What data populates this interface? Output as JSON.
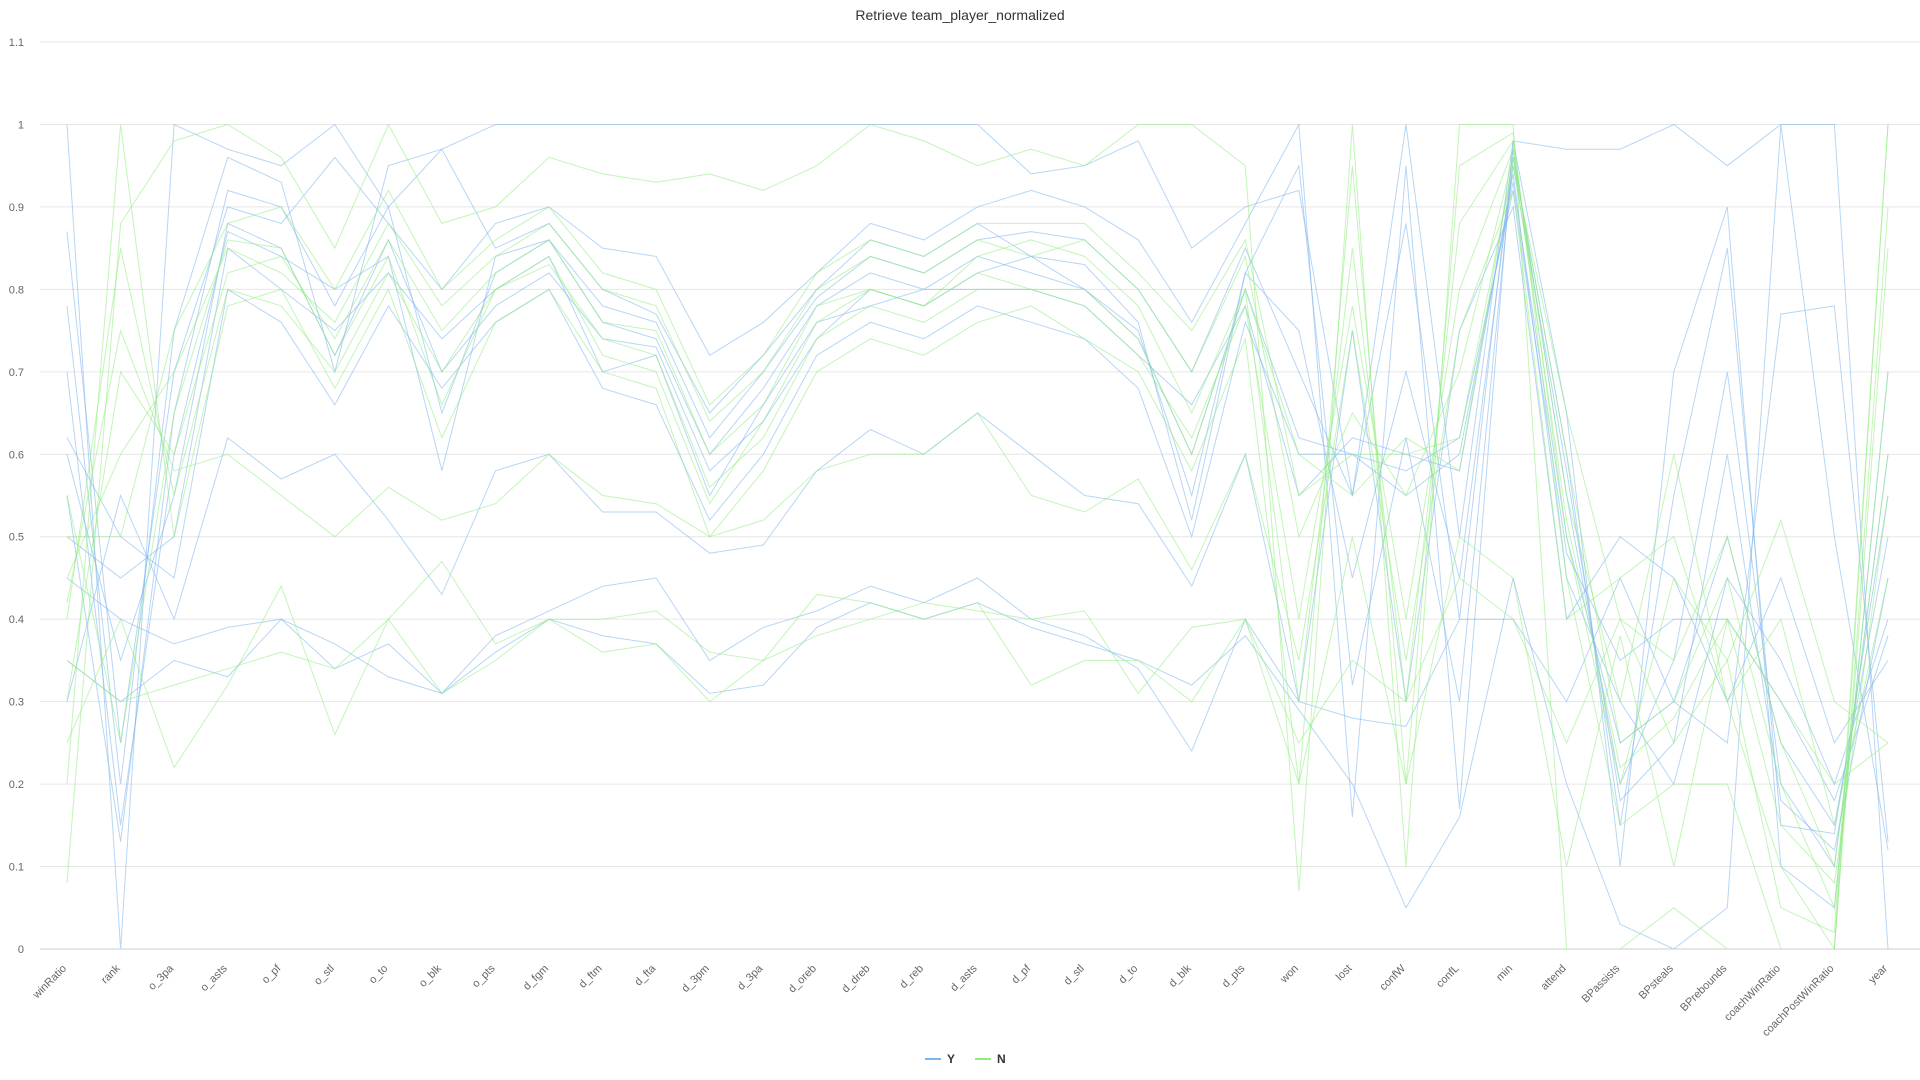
{
  "chart_data": {
    "type": "line",
    "title": "Retrieve team_player_normalized",
    "xlabel": "",
    "ylabel": "",
    "ylim": [
      0,
      1.1
    ],
    "yticks": [
      "0",
      "0.1",
      "0.2",
      "0.3",
      "0.4",
      "0.5",
      "0.6",
      "0.7",
      "0.8",
      "0.9",
      "1",
      "1.1"
    ],
    "grid": true,
    "legend_position": "bottom",
    "categories": [
      "winRatio",
      "rank",
      "o_3pa",
      "o_asts",
      "o_pf",
      "o_stl",
      "o_to",
      "o_blk",
      "o_pts",
      "d_fgm",
      "d_ftm",
      "d_fta",
      "d_3pm",
      "d_3pa",
      "d_oreb",
      "d_dreb",
      "d_reb",
      "d_asts",
      "d_pf",
      "d_stl",
      "d_to",
      "d_blk",
      "d_pts",
      "won",
      "lost",
      "confW",
      "confL",
      "min",
      "attend",
      "BPassists",
      "BPsteals",
      "BPrebounds",
      "coachWinRatio",
      "coachPostWinRatio",
      "year"
    ],
    "legend": [
      {
        "name": "Y",
        "color": "#7cb5ec"
      },
      {
        "name": "N",
        "color": "#90ed7d"
      }
    ],
    "series": [
      {
        "name": "Y",
        "color": "#7cb5ec",
        "values": [
          0.55,
          0.13,
          0.65,
          0.92,
          0.9,
          0.78,
          0.9,
          0.65,
          0.82,
          0.86,
          0.78,
          0.76,
          0.62,
          0.7,
          0.79,
          0.84,
          0.82,
          0.86,
          0.87,
          0.86,
          0.8,
          0.7,
          0.85,
          0.7,
          0.55,
          0.88,
          0.4,
          0.97,
          0.55,
          0.2,
          0.35,
          0.7,
          0.2,
          0.1,
          0.6
        ]
      },
      {
        "name": "Y",
        "color": "#7cb5ec",
        "values": [
          0.78,
          0.2,
          0.75,
          0.96,
          0.93,
          0.7,
          0.95,
          0.97,
          0.85,
          0.88,
          0.8,
          0.77,
          0.65,
          0.72,
          0.8,
          0.86,
          0.84,
          0.88,
          0.84,
          0.83,
          0.76,
          0.52,
          0.82,
          0.95,
          0.32,
          0.62,
          0.3,
          0.96,
          0.6,
          0.15,
          0.55,
          0.85,
          0.15,
          0.14,
          0.55
        ]
      },
      {
        "name": "Y",
        "color": "#7cb5ec",
        "values": [
          0.6,
          0.35,
          0.55,
          0.88,
          0.85,
          0.72,
          0.86,
          0.7,
          0.78,
          0.82,
          0.74,
          0.73,
          0.58,
          0.64,
          0.74,
          0.8,
          0.78,
          0.82,
          0.84,
          0.8,
          0.74,
          0.6,
          0.8,
          0.62,
          0.6,
          0.55,
          0.6,
          0.93,
          0.5,
          0.25,
          0.3,
          0.5,
          0.25,
          0.15,
          0.5
        ]
      },
      {
        "name": "Y",
        "color": "#7cb5ec",
        "values": [
          0.5,
          0.45,
          0.5,
          0.85,
          0.8,
          0.75,
          0.82,
          0.74,
          0.8,
          0.84,
          0.7,
          0.72,
          0.55,
          0.66,
          0.76,
          0.78,
          0.8,
          0.8,
          0.8,
          0.78,
          0.72,
          0.66,
          0.78,
          0.55,
          0.62,
          0.6,
          0.58,
          0.94,
          0.45,
          0.3,
          0.2,
          0.45,
          0.35,
          0.2,
          0.4
        ]
      },
      {
        "name": "Y",
        "color": "#7cb5ec",
        "values": [
          0.87,
          0.25,
          0.7,
          0.9,
          0.88,
          0.96,
          0.88,
          0.8,
          0.88,
          0.9,
          0.85,
          0.84,
          0.72,
          0.76,
          0.82,
          0.88,
          0.86,
          0.9,
          0.92,
          0.9,
          0.86,
          0.76,
          0.88,
          1.0,
          0.16,
          0.95,
          0.17,
          0.98,
          0.65,
          0.1,
          0.7,
          0.9,
          0.1,
          0.05,
          0.7
        ]
      },
      {
        "name": "Y",
        "color": "#7cb5ec",
        "values": [
          0.3,
          0.55,
          0.4,
          0.62,
          0.57,
          0.6,
          0.52,
          0.43,
          0.58,
          0.6,
          0.53,
          0.53,
          0.48,
          0.49,
          0.58,
          0.63,
          0.6,
          0.65,
          0.6,
          0.55,
          0.54,
          0.44,
          0.6,
          0.3,
          0.75,
          0.3,
          0.75,
          0.9,
          0.4,
          0.5,
          0.45,
          0.3,
          0.45,
          0.25,
          0.35
        ]
      },
      {
        "name": "Y",
        "color": "#7cb5ec",
        "values": [
          0.45,
          0.4,
          0.37,
          0.39,
          0.4,
          0.37,
          0.33,
          0.31,
          0.38,
          0.41,
          0.44,
          0.45,
          0.35,
          0.39,
          0.41,
          0.44,
          0.42,
          0.45,
          0.4,
          0.38,
          0.34,
          0.24,
          0.4,
          0.3,
          0.28,
          0.27,
          0.4,
          0.4,
          0.3,
          0.45,
          0.3,
          0.25,
          0.77,
          0.78,
          0.13
        ]
      },
      {
        "name": "Y",
        "color": "#7cb5ec",
        "values": [
          0.35,
          0.3,
          0.35,
          0.33,
          0.4,
          0.34,
          0.37,
          0.31,
          0.36,
          0.4,
          0.38,
          0.37,
          0.31,
          0.32,
          0.39,
          0.42,
          0.4,
          0.42,
          0.39,
          0.37,
          0.35,
          0.32,
          0.38,
          0.29,
          0.2,
          0.05,
          0.16,
          0.45,
          0.2,
          0.03,
          0.0,
          0.05,
          1.0,
          0.5,
          0.12
        ]
      },
      {
        "name": "Y",
        "color": "#7cb5ec",
        "values": [
          1.0,
          0.0,
          1.0,
          0.97,
          0.95,
          1.0,
          0.9,
          0.97,
          1.0,
          1.0,
          1.0,
          1.0,
          1.0,
          1.0,
          1.0,
          1.0,
          1.0,
          1.0,
          0.94,
          0.95,
          0.98,
          0.85,
          0.9,
          0.92,
          0.55,
          1.0,
          0.5,
          0.98,
          0.97,
          0.97,
          1.0,
          0.95,
          1.0,
          1.0,
          0.0
        ]
      },
      {
        "name": "Y",
        "color": "#7cb5ec",
        "values": [
          0.7,
          0.15,
          0.6,
          0.87,
          0.84,
          0.8,
          0.84,
          0.58,
          0.84,
          0.86,
          0.76,
          0.74,
          0.6,
          0.68,
          0.78,
          0.82,
          0.8,
          0.84,
          0.82,
          0.8,
          0.75,
          0.55,
          0.82,
          0.75,
          0.45,
          0.7,
          0.45,
          0.95,
          0.58,
          0.18,
          0.25,
          0.6,
          0.18,
          0.12,
          0.45
        ]
      },
      {
        "name": "Y",
        "color": "#7cb5ec",
        "values": [
          0.62,
          0.5,
          0.45,
          0.8,
          0.76,
          0.66,
          0.78,
          0.68,
          0.76,
          0.8,
          0.68,
          0.66,
          0.52,
          0.6,
          0.72,
          0.76,
          0.74,
          0.78,
          0.76,
          0.74,
          0.68,
          0.5,
          0.76,
          0.6,
          0.6,
          0.58,
          0.62,
          0.92,
          0.48,
          0.35,
          0.4,
          0.4,
          0.3,
          0.18,
          0.38
        ]
      },
      {
        "name": "N",
        "color": "#90ed7d",
        "values": [
          0.4,
          0.85,
          0.55,
          0.8,
          0.78,
          0.7,
          0.82,
          0.7,
          0.8,
          0.83,
          0.74,
          0.72,
          0.56,
          0.62,
          0.74,
          0.78,
          0.76,
          0.8,
          0.8,
          0.78,
          0.72,
          0.62,
          0.78,
          0.4,
          0.78,
          0.4,
          0.8,
          0.97,
          0.55,
          0.3,
          0.6,
          0.3,
          0.1,
          0.0,
          0.9
        ]
      },
      {
        "name": "N",
        "color": "#90ed7d",
        "values": [
          0.3,
          0.7,
          0.6,
          0.82,
          0.84,
          0.74,
          0.86,
          0.75,
          0.82,
          0.86,
          0.76,
          0.75,
          0.6,
          0.66,
          0.78,
          0.8,
          0.78,
          0.84,
          0.86,
          0.84,
          0.78,
          0.65,
          0.8,
          0.3,
          0.85,
          0.3,
          0.88,
          0.98,
          0.5,
          0.2,
          0.45,
          0.35,
          0.05,
          0.02,
          1.0
        ]
      },
      {
        "name": "N",
        "color": "#90ed7d",
        "values": [
          0.45,
          0.6,
          0.7,
          0.85,
          0.82,
          0.76,
          0.88,
          0.78,
          0.84,
          0.88,
          0.8,
          0.78,
          0.64,
          0.7,
          0.8,
          0.84,
          0.82,
          0.86,
          0.84,
          0.86,
          0.8,
          0.7,
          0.84,
          0.5,
          0.65,
          0.55,
          0.7,
          0.96,
          0.6,
          0.25,
          0.3,
          0.45,
          0.2,
          0.05,
          0.7
        ]
      },
      {
        "name": "N",
        "color": "#90ed7d",
        "values": [
          0.2,
          1.0,
          0.5,
          0.78,
          0.8,
          0.68,
          0.8,
          0.62,
          0.76,
          0.8,
          0.7,
          0.68,
          0.5,
          0.58,
          0.7,
          0.74,
          0.72,
          0.76,
          0.78,
          0.74,
          0.7,
          0.58,
          0.74,
          0.2,
          0.95,
          0.2,
          0.95,
          0.99,
          0.45,
          0.15,
          0.2,
          0.2,
          0.0,
          0.0,
          0.85
        ]
      },
      {
        "name": "N",
        "color": "#90ed7d",
        "values": [
          0.5,
          0.5,
          0.75,
          0.88,
          0.9,
          0.8,
          0.92,
          0.8,
          0.86,
          0.9,
          0.82,
          0.8,
          0.66,
          0.72,
          0.82,
          0.86,
          0.84,
          0.88,
          0.88,
          0.88,
          0.82,
          0.75,
          0.86,
          0.55,
          0.6,
          0.6,
          0.62,
          0.95,
          0.65,
          0.4,
          0.35,
          0.5,
          0.25,
          0.1,
          0.6
        ]
      },
      {
        "name": "N",
        "color": "#90ed7d",
        "values": [
          0.08,
          0.88,
          0.98,
          1.0,
          0.96,
          0.85,
          1.0,
          0.88,
          0.9,
          0.96,
          0.94,
          0.93,
          0.94,
          0.92,
          0.95,
          1.0,
          0.98,
          0.95,
          0.97,
          0.95,
          1.0,
          1.0,
          0.95,
          0.07,
          1.0,
          0.1,
          1.0,
          1.0,
          0.0,
          0.0,
          0.05,
          0.0,
          0.0,
          0.0,
          1.0
        ]
      },
      {
        "name": "N",
        "color": "#90ed7d",
        "values": [
          0.35,
          0.3,
          0.32,
          0.34,
          0.36,
          0.34,
          0.4,
          0.31,
          0.35,
          0.4,
          0.4,
          0.41,
          0.36,
          0.35,
          0.43,
          0.42,
          0.4,
          0.42,
          0.32,
          0.35,
          0.35,
          0.3,
          0.4,
          0.25,
          0.35,
          0.3,
          0.45,
          0.4,
          0.25,
          0.4,
          0.25,
          0.35,
          0.52,
          0.3,
          0.25
        ]
      },
      {
        "name": "N",
        "color": "#90ed7d",
        "values": [
          0.25,
          0.4,
          0.22,
          0.32,
          0.44,
          0.26,
          0.4,
          0.47,
          0.37,
          0.4,
          0.36,
          0.37,
          0.3,
          0.35,
          0.38,
          0.4,
          0.42,
          0.41,
          0.4,
          0.41,
          0.31,
          0.39,
          0.4,
          0.2,
          0.5,
          0.2,
          0.5,
          0.45,
          0.1,
          0.38,
          0.1,
          0.4,
          0.3,
          0.2,
          0.25
        ]
      },
      {
        "name": "N",
        "color": "#90ed7d",
        "values": [
          0.55,
          0.25,
          0.65,
          0.86,
          0.85,
          0.72,
          0.84,
          0.66,
          0.8,
          0.84,
          0.72,
          0.7,
          0.54,
          0.64,
          0.76,
          0.8,
          0.78,
          0.82,
          0.8,
          0.8,
          0.74,
          0.6,
          0.8,
          0.6,
          0.55,
          0.62,
          0.58,
          0.96,
          0.52,
          0.22,
          0.28,
          0.4,
          0.15,
          0.08,
          0.55
        ]
      },
      {
        "name": "N",
        "color": "#90ed7d",
        "values": [
          0.42,
          0.75,
          0.58,
          0.6,
          0.55,
          0.5,
          0.56,
          0.52,
          0.54,
          0.6,
          0.55,
          0.54,
          0.5,
          0.52,
          0.58,
          0.6,
          0.6,
          0.65,
          0.55,
          0.53,
          0.57,
          0.46,
          0.6,
          0.35,
          0.75,
          0.35,
          0.75,
          0.92,
          0.4,
          0.45,
          0.5,
          0.3,
          0.4,
          0.15,
          0.45
        ]
      }
    ]
  }
}
